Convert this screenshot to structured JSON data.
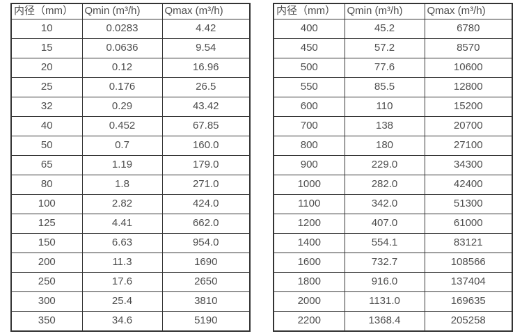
{
  "colors": {
    "background": "#ffffff",
    "border": "#333333",
    "text": "#4d4d4d"
  },
  "tables": [
    {
      "headers": [
        "内径（mm）",
        "Qmin (m³/h)",
        "Qmax (m³/h)"
      ],
      "rows": [
        [
          "10",
          "0.0283",
          "4.42"
        ],
        [
          "15",
          "0.0636",
          "9.54"
        ],
        [
          "20",
          "0.12",
          "16.96"
        ],
        [
          "25",
          "0.176",
          "26.5"
        ],
        [
          "32",
          "0.29",
          "43.42"
        ],
        [
          "40",
          "0.452",
          "67.85"
        ],
        [
          "50",
          "0.7",
          "160.0"
        ],
        [
          "65",
          "1.19",
          "179.0"
        ],
        [
          "80",
          "1.8",
          "271.0"
        ],
        [
          "100",
          "2.82",
          "424.0"
        ],
        [
          "125",
          "4.41",
          "662.0"
        ],
        [
          "150",
          "6.63",
          "954.0"
        ],
        [
          "200",
          "11.3",
          "1690"
        ],
        [
          "250",
          "17.6",
          "2650"
        ],
        [
          "300",
          "25.4",
          "3810"
        ],
        [
          "350",
          "34.6",
          "5190"
        ]
      ]
    },
    {
      "headers": [
        "内径（mm）",
        "Qmin (m³/h)",
        "Qmax (m³/h)"
      ],
      "rows": [
        [
          "400",
          "45.2",
          "6780"
        ],
        [
          "450",
          "57.2",
          "8570"
        ],
        [
          "500",
          "77.6",
          "10600"
        ],
        [
          "550",
          "85.5",
          "12800"
        ],
        [
          "600",
          "110",
          "15200"
        ],
        [
          "700",
          "138",
          "20700"
        ],
        [
          "800",
          "180",
          "27100"
        ],
        [
          "900",
          "229.0",
          "34300"
        ],
        [
          "1000",
          "282.0",
          "42400"
        ],
        [
          "1100",
          "342.0",
          "51300"
        ],
        [
          "1200",
          "407.0",
          "61000"
        ],
        [
          "1400",
          "554.1",
          "83121"
        ],
        [
          "1600",
          "732.7",
          "108566"
        ],
        [
          "1800",
          "916.0",
          "137404"
        ],
        [
          "2000",
          "1131.0",
          "169635"
        ],
        [
          "2200",
          "1368.4",
          "205258"
        ]
      ]
    }
  ]
}
